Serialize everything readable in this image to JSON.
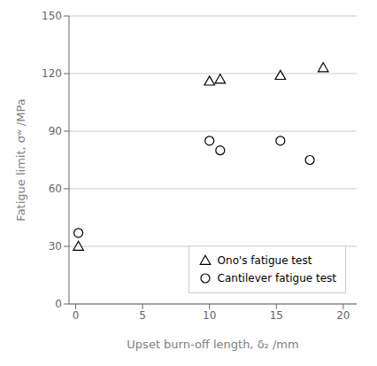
{
  "chart_data": {
    "type": "scatter",
    "xlabel": "Upset burn-off length, δ₂ /mm",
    "ylabel": "Fatigue limit, σʷ /MPa",
    "xlim": [
      -0.5,
      21
    ],
    "ylim": [
      0,
      150
    ],
    "xticks": [
      0,
      5,
      10,
      15,
      20
    ],
    "yticks": [
      0,
      30,
      60,
      90,
      120,
      150
    ],
    "grid": true,
    "legend": "lower right",
    "series": [
      {
        "name": "Ono's fatigue test",
        "color": "black",
        "marker": "triangle",
        "x": [
          0.2,
          10.0,
          10.8,
          15.3,
          18.5
        ],
        "values": [
          30,
          116,
          117,
          119,
          123
        ]
      },
      {
        "name": "Cantilever fatigue test",
        "color": "black",
        "marker": "circle",
        "x": [
          0.2,
          10.0,
          10.8,
          15.3,
          17.5
        ],
        "values": [
          37,
          85,
          80,
          85,
          75
        ]
      }
    ]
  }
}
